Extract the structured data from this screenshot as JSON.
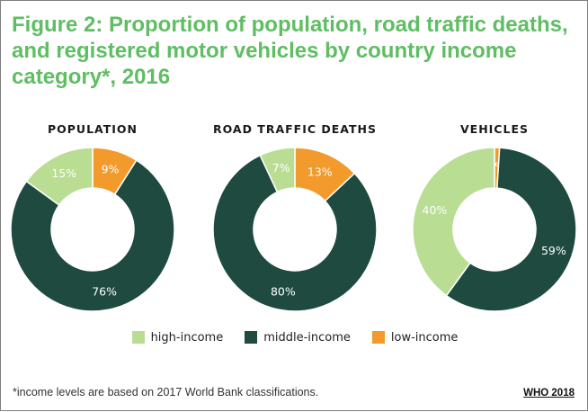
{
  "title": "Figure 2: Proportion of population, road traffic deaths, and registered motor vehicles by country income category*, 2016",
  "colors": {
    "high-income": "#b9de93",
    "middle-income": "#1e4a40",
    "low-income": "#f29b2c",
    "title": "#5fbe63"
  },
  "legend": [
    {
      "key": "high-income",
      "label": "high-income"
    },
    {
      "key": "middle-income",
      "label": "middle-income"
    },
    {
      "key": "low-income",
      "label": "low-income"
    }
  ],
  "chart_data": [
    {
      "type": "pie",
      "donut": true,
      "title": "POPULATION",
      "slices": [
        {
          "category": "low-income",
          "value": 9,
          "label": "9%"
        },
        {
          "category": "middle-income",
          "value": 76,
          "label": "76%"
        },
        {
          "category": "high-income",
          "value": 15,
          "label": "15%"
        }
      ]
    },
    {
      "type": "pie",
      "donut": true,
      "title": "ROAD TRAFFIC DEATHS",
      "slices": [
        {
          "category": "low-income",
          "value": 13,
          "label": "13%"
        },
        {
          "category": "middle-income",
          "value": 80,
          "label": "80%"
        },
        {
          "category": "high-income",
          "value": 7,
          "label": "7%"
        }
      ]
    },
    {
      "type": "pie",
      "donut": true,
      "title": "VEHICLES",
      "slices": [
        {
          "category": "low-income",
          "value": 1,
          "label": "1%"
        },
        {
          "category": "middle-income",
          "value": 59,
          "label": "59%"
        },
        {
          "category": "high-income",
          "value": 40,
          "label": "40%"
        }
      ]
    }
  ],
  "footnote": "*income levels are based on 2017 World Bank classifications.",
  "source": "WHO 2018"
}
